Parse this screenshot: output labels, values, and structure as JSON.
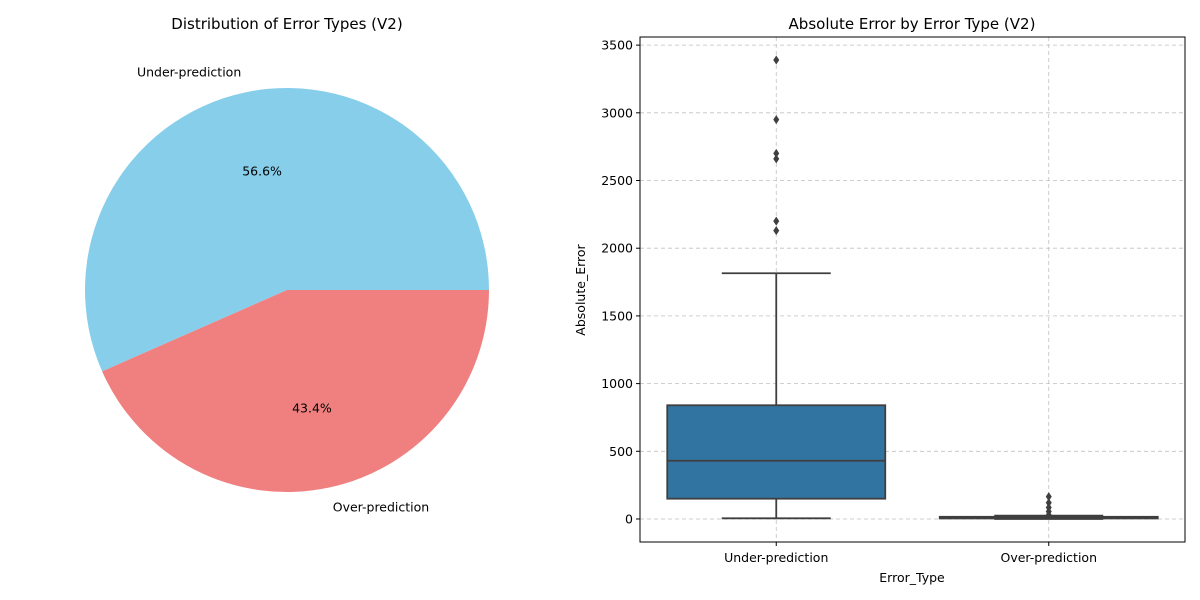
{
  "chart_data": [
    {
      "type": "pie",
      "title": "Distribution of Error Types (V2)",
      "labels": [
        "Under-prediction",
        "Over-prediction"
      ],
      "values": [
        56.6,
        43.4
      ],
      "value_labels": [
        "56.6%",
        "43.4%"
      ],
      "colors": [
        "#87ceeb",
        "#f08080"
      ]
    },
    {
      "type": "box",
      "title": "Absolute Error by Error Type (V2)",
      "xlabel": "Error_Type",
      "ylabel": "Absolute_Error",
      "categories": [
        "Under-prediction",
        "Over-prediction"
      ],
      "ylim": [
        -170,
        3560
      ],
      "yticks": [
        0,
        500,
        1000,
        1500,
        2000,
        2500,
        3000,
        3500
      ],
      "grid": true,
      "box_color": "#3274a1",
      "line_color": "#3f3f3f",
      "boxes": [
        {
          "category": "Under-prediction",
          "whisker_low": 5,
          "q1": 150,
          "median": 430,
          "q3": 840,
          "whisker_high": 1815,
          "outliers": [
            2130,
            2200,
            2660,
            2700,
            2950,
            3390
          ]
        },
        {
          "category": "Over-prediction",
          "whisker_low": 0,
          "q1": 4,
          "median": 10,
          "q3": 16,
          "whisker_high": 25,
          "outliers": [
            30,
            55,
            85,
            120,
            165
          ]
        }
      ]
    }
  ]
}
